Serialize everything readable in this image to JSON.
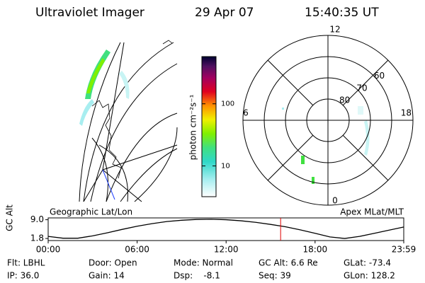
{
  "header": {
    "title": "Ultraviolet Imager",
    "date": "29 Apr 07",
    "time": "15:40:35 UT"
  },
  "chart_data": [
    {
      "type": "colorbar",
      "axis_label": "photon cm⁻²s⁻¹",
      "log_scale": true,
      "ylim": [
        3.2,
        575
      ],
      "yticks": [
        10,
        100
      ]
    },
    {
      "type": "polar",
      "rlim": [
        90,
        50
      ],
      "rticks": [
        80,
        70,
        60
      ],
      "thetaticks": [
        12,
        18,
        6,
        0
      ]
    },
    {
      "type": "line",
      "left_label": "Geographic Lat/Lon",
      "right_label": "Apex MLat/MLT",
      "ylabel": "GC Alt",
      "ylim": [
        1.0,
        9.7
      ],
      "yticks": [
        {
          "value": 9.0,
          "label": "9.0"
        },
        1.8
      ],
      "xlim": [
        0,
        23.98
      ],
      "xticks": [
        {
          "value": 0,
          "label": "00:00"
        },
        {
          "value": 6,
          "label": "06:00"
        },
        {
          "value": 12,
          "label": "12:00"
        },
        {
          "value": 18,
          "label": "18:00"
        },
        {
          "value": 23.98,
          "label": "23:59"
        }
      ],
      "marker_x": 15.676,
      "marker_color": "#e00000",
      "series": [
        {
          "color": "#000000",
          "x": [
            0,
            1,
            2,
            3,
            4,
            5,
            6,
            7,
            8,
            9,
            10,
            11,
            12,
            13,
            14,
            15,
            16,
            17,
            18,
            19,
            20,
            21,
            22,
            23,
            23.98
          ],
          "values": [
            2.6,
            1.9,
            1.9,
            2.8,
            4.0,
            5.3,
            6.5,
            7.5,
            8.3,
            8.8,
            9.1,
            9.2,
            9.0,
            8.6,
            8.0,
            7.2,
            6.3,
            5.1,
            3.8,
            2.4,
            1.8,
            2.6,
            3.8,
            5.0,
            6.2
          ]
        }
      ]
    }
  ],
  "footer": [
    [
      "Flt: LBHL",
      "IP: 36.0"
    ],
    [
      "Door: Open",
      "Gain: 14"
    ],
    [
      "Mode: Normal",
      "Dsp:    -8.1"
    ],
    [
      "GC Alt: 6.6 Re",
      "Seq: 39"
    ],
    [
      "GLat: -73.4",
      "GLon: 128.2"
    ]
  ]
}
